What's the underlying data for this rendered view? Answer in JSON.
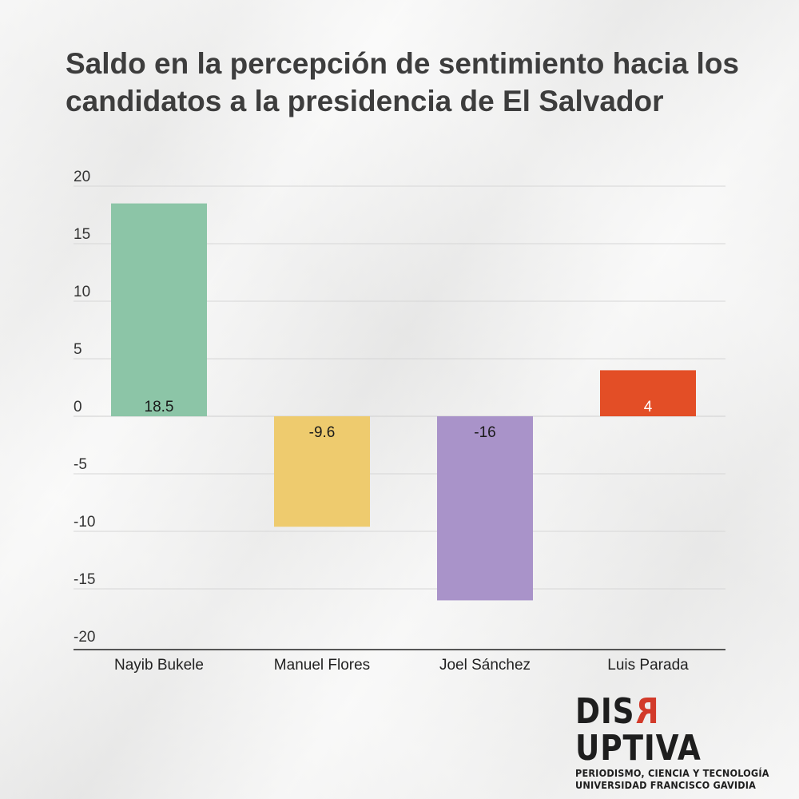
{
  "title": "Saldo en la percepción de sentimiento hacia los candidatos a la presidencia de El Salvador",
  "chart_data": {
    "type": "bar",
    "categories": [
      "Nayib Bukele",
      "Manuel Flores",
      "Joel Sánchez",
      "Luis Parada"
    ],
    "values": [
      18.5,
      -9.6,
      -16,
      4
    ],
    "value_labels": [
      "18.5",
      "-9.6",
      "-16",
      "4"
    ],
    "colors": [
      "#8cc5a7",
      "#eecb6e",
      "#a993c9",
      "#e34e26"
    ],
    "label_colors": [
      "#1a1a1a",
      "#1a1a1a",
      "#1a1a1a",
      "#ffffff"
    ],
    "ylim": [
      -20,
      20
    ],
    "yticks": [
      20,
      15,
      10,
      5,
      0,
      -5,
      -10,
      -15,
      -20
    ],
    "grid": true,
    "xlabel": "",
    "ylabel": ""
  },
  "logo": {
    "word_pre": "DIS",
    "word_r": "R",
    "word_post": "UPTIVA",
    "line1": "PERIODISMO, CIENCIA Y TECNOLOGÍA",
    "line2": "UNIVERSIDAD FRANCISCO GAVIDIA"
  }
}
